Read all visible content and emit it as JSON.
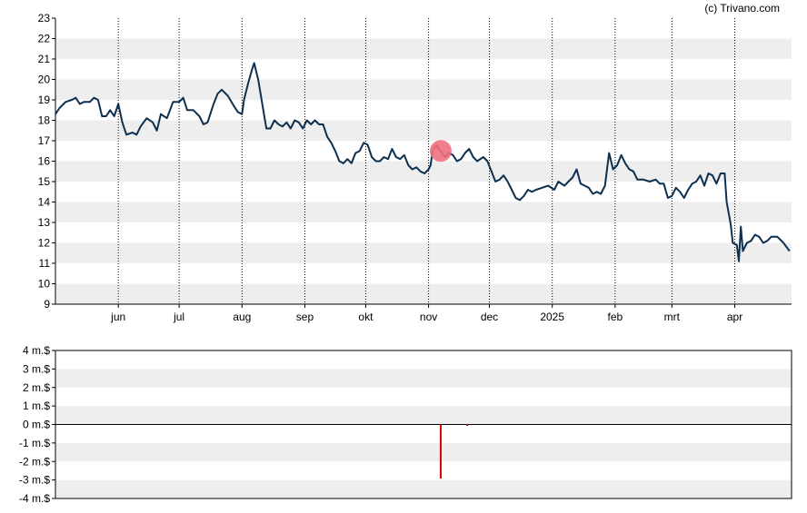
{
  "credit": "(c) Trivano.com",
  "colors": {
    "price_line": "#0d3050",
    "highlight": "#f07080",
    "flow_bar": "#dd0000",
    "band": "#eeeeee",
    "grid": "#000000"
  },
  "chart_data": [
    {
      "type": "line",
      "name": "price",
      "ylim": [
        9,
        23
      ],
      "yticks": [
        "9",
        "10",
        "11",
        "12",
        "13",
        "14",
        "15",
        "16",
        "17",
        "18",
        "19",
        "20",
        "21",
        "22",
        "23"
      ],
      "xlabels": [
        "jun",
        "jul",
        "aug",
        "sep",
        "okt",
        "nov",
        "dec",
        "2025",
        "feb",
        "mrt",
        "apr"
      ],
      "xlabel_dates": [
        "2024-06-01",
        "2024-07-01",
        "2024-08-01",
        "2024-09-01",
        "2024-10-01",
        "2024-11-01",
        "2024-12-01",
        "2025-01-01",
        "2025-02-01",
        "2025-03-01",
        "2025-04-01"
      ],
      "xlim": [
        "2024-05-01",
        "2025-04-29"
      ],
      "grid": "vertical dotted at months, horizontal bands",
      "highlight": {
        "date": "2024-11-07",
        "value": 16.5
      },
      "points": [
        [
          "2024-05-01",
          18.3
        ],
        [
          "2024-05-03",
          18.6
        ],
        [
          "2024-05-06",
          18.9
        ],
        [
          "2024-05-09",
          19.0
        ],
        [
          "2024-05-11",
          19.1
        ],
        [
          "2024-05-13",
          18.8
        ],
        [
          "2024-05-15",
          18.9
        ],
        [
          "2024-05-18",
          18.9
        ],
        [
          "2024-05-20",
          19.1
        ],
        [
          "2024-05-22",
          19.0
        ],
        [
          "2024-05-24",
          18.2
        ],
        [
          "2024-05-26",
          18.2
        ],
        [
          "2024-05-28",
          18.5
        ],
        [
          "2024-05-30",
          18.2
        ],
        [
          "2024-06-01",
          18.8
        ],
        [
          "2024-06-03",
          17.9
        ],
        [
          "2024-06-05",
          17.3
        ],
        [
          "2024-06-08",
          17.4
        ],
        [
          "2024-06-10",
          17.3
        ],
        [
          "2024-06-12",
          17.7
        ],
        [
          "2024-06-15",
          18.1
        ],
        [
          "2024-06-18",
          17.9
        ],
        [
          "2024-06-20",
          17.5
        ],
        [
          "2024-06-22",
          18.3
        ],
        [
          "2024-06-25",
          18.1
        ],
        [
          "2024-06-28",
          18.9
        ],
        [
          "2024-07-01",
          18.9
        ],
        [
          "2024-07-03",
          19.1
        ],
        [
          "2024-07-05",
          18.5
        ],
        [
          "2024-07-08",
          18.5
        ],
        [
          "2024-07-11",
          18.2
        ],
        [
          "2024-07-13",
          17.8
        ],
        [
          "2024-07-15",
          17.9
        ],
        [
          "2024-07-18",
          18.8
        ],
        [
          "2024-07-20",
          19.3
        ],
        [
          "2024-07-22",
          19.5
        ],
        [
          "2024-07-25",
          19.2
        ],
        [
          "2024-07-28",
          18.7
        ],
        [
          "2024-07-30",
          18.4
        ],
        [
          "2024-08-01",
          18.3
        ],
        [
          "2024-08-02",
          19.0
        ],
        [
          "2024-08-04",
          19.8
        ],
        [
          "2024-08-06",
          20.5
        ],
        [
          "2024-08-07",
          20.8
        ],
        [
          "2024-08-09",
          20.0
        ],
        [
          "2024-08-11",
          18.8
        ],
        [
          "2024-08-13",
          17.6
        ],
        [
          "2024-08-15",
          17.6
        ],
        [
          "2024-08-17",
          18.0
        ],
        [
          "2024-08-19",
          17.8
        ],
        [
          "2024-08-21",
          17.7
        ],
        [
          "2024-08-23",
          17.9
        ],
        [
          "2024-08-25",
          17.6
        ],
        [
          "2024-08-27",
          18.0
        ],
        [
          "2024-08-29",
          17.9
        ],
        [
          "2024-08-31",
          17.6
        ],
        [
          "2024-09-02",
          18.0
        ],
        [
          "2024-09-04",
          17.8
        ],
        [
          "2024-09-06",
          18.0
        ],
        [
          "2024-09-08",
          17.8
        ],
        [
          "2024-09-10",
          17.8
        ],
        [
          "2024-09-12",
          17.2
        ],
        [
          "2024-09-14",
          16.9
        ],
        [
          "2024-09-16",
          16.5
        ],
        [
          "2024-09-18",
          16.0
        ],
        [
          "2024-09-20",
          15.9
        ],
        [
          "2024-09-22",
          16.1
        ],
        [
          "2024-09-24",
          15.9
        ],
        [
          "2024-09-26",
          16.4
        ],
        [
          "2024-09-28",
          16.5
        ],
        [
          "2024-09-30",
          16.9
        ],
        [
          "2024-10-02",
          16.8
        ],
        [
          "2024-10-04",
          16.2
        ],
        [
          "2024-10-06",
          16.0
        ],
        [
          "2024-10-08",
          16.0
        ],
        [
          "2024-10-10",
          16.2
        ],
        [
          "2024-10-12",
          16.1
        ],
        [
          "2024-10-14",
          16.6
        ],
        [
          "2024-10-16",
          16.2
        ],
        [
          "2024-10-18",
          16.1
        ],
        [
          "2024-10-20",
          16.3
        ],
        [
          "2024-10-22",
          15.8
        ],
        [
          "2024-10-24",
          15.6
        ],
        [
          "2024-10-26",
          15.7
        ],
        [
          "2024-10-28",
          15.5
        ],
        [
          "2024-10-30",
          15.4
        ],
        [
          "2024-11-01",
          15.6
        ],
        [
          "2024-11-02",
          15.8
        ],
        [
          "2024-11-03",
          16.5
        ],
        [
          "2024-11-05",
          16.8
        ],
        [
          "2024-11-06",
          16.6
        ],
        [
          "2024-11-07",
          16.5
        ],
        [
          "2024-11-09",
          16.2
        ],
        [
          "2024-11-11",
          16.4
        ],
        [
          "2024-11-13",
          16.3
        ],
        [
          "2024-11-15",
          16.0
        ],
        [
          "2024-11-17",
          16.1
        ],
        [
          "2024-11-19",
          16.4
        ],
        [
          "2024-11-21",
          16.6
        ],
        [
          "2024-11-23",
          16.2
        ],
        [
          "2024-11-25",
          16.0
        ],
        [
          "2024-11-28",
          16.2
        ],
        [
          "2024-11-30",
          16.0
        ],
        [
          "2024-12-02",
          15.5
        ],
        [
          "2024-12-04",
          15.0
        ],
        [
          "2024-12-06",
          15.1
        ],
        [
          "2024-12-08",
          15.3
        ],
        [
          "2024-12-10",
          15.0
        ],
        [
          "2024-12-12",
          14.6
        ],
        [
          "2024-12-14",
          14.2
        ],
        [
          "2024-12-16",
          14.1
        ],
        [
          "2024-12-18",
          14.3
        ],
        [
          "2024-12-20",
          14.6
        ],
        [
          "2024-12-22",
          14.5
        ],
        [
          "2024-12-24",
          14.6
        ],
        [
          "2024-12-27",
          14.7
        ],
        [
          "2024-12-30",
          14.8
        ],
        [
          "2025-01-02",
          14.6
        ],
        [
          "2025-01-04",
          15.0
        ],
        [
          "2025-01-07",
          14.8
        ],
        [
          "2025-01-09",
          15.0
        ],
        [
          "2025-01-11",
          15.2
        ],
        [
          "2025-01-13",
          15.6
        ],
        [
          "2025-01-15",
          14.9
        ],
        [
          "2025-01-17",
          14.8
        ],
        [
          "2025-01-19",
          14.7
        ],
        [
          "2025-01-21",
          14.4
        ],
        [
          "2025-01-23",
          14.5
        ],
        [
          "2025-01-25",
          14.4
        ],
        [
          "2025-01-27",
          14.8
        ],
        [
          "2025-01-29",
          16.4
        ],
        [
          "2025-01-31",
          15.6
        ],
        [
          "2025-02-02",
          15.8
        ],
        [
          "2025-02-04",
          16.3
        ],
        [
          "2025-02-06",
          15.9
        ],
        [
          "2025-02-08",
          15.6
        ],
        [
          "2025-02-10",
          15.5
        ],
        [
          "2025-02-12",
          15.1
        ],
        [
          "2025-02-15",
          15.1
        ],
        [
          "2025-02-18",
          15.0
        ],
        [
          "2025-02-21",
          15.1
        ],
        [
          "2025-02-23",
          14.9
        ],
        [
          "2025-02-25",
          14.9
        ],
        [
          "2025-02-27",
          14.2
        ],
        [
          "2025-03-01",
          14.3
        ],
        [
          "2025-03-03",
          14.7
        ],
        [
          "2025-03-05",
          14.5
        ],
        [
          "2025-03-07",
          14.2
        ],
        [
          "2025-03-09",
          14.6
        ],
        [
          "2025-03-11",
          14.9
        ],
        [
          "2025-03-13",
          15.0
        ],
        [
          "2025-03-15",
          15.3
        ],
        [
          "2025-03-17",
          14.8
        ],
        [
          "2025-03-19",
          15.4
        ],
        [
          "2025-03-21",
          15.3
        ],
        [
          "2025-03-23",
          14.9
        ],
        [
          "2025-03-25",
          15.4
        ],
        [
          "2025-03-27",
          15.4
        ],
        [
          "2025-03-28",
          14.0
        ],
        [
          "2025-03-30",
          12.9
        ],
        [
          "2025-03-31",
          12.0
        ],
        [
          "2025-04-02",
          11.9
        ],
        [
          "2025-04-03",
          11.1
        ],
        [
          "2025-04-04",
          12.8
        ],
        [
          "2025-04-05",
          11.6
        ],
        [
          "2025-04-07",
          12.0
        ],
        [
          "2025-04-09",
          12.1
        ],
        [
          "2025-04-11",
          12.4
        ],
        [
          "2025-04-13",
          12.3
        ],
        [
          "2025-04-15",
          12.0
        ],
        [
          "2025-04-17",
          12.1
        ],
        [
          "2025-04-19",
          12.3
        ],
        [
          "2025-04-22",
          12.3
        ],
        [
          "2025-04-25",
          12.0
        ],
        [
          "2025-04-28",
          11.6
        ]
      ]
    },
    {
      "type": "bar",
      "name": "volume",
      "ylim": [
        -4,
        4
      ],
      "yticks": [
        "-4 m.$",
        "-3 m.$",
        "-2 m.$",
        "-1 m.$",
        "0 m.$",
        "1 m.$",
        "2 m.$",
        "3 m.$",
        "4 m.$"
      ],
      "bars": [
        [
          "2024-11-07",
          -2.9
        ],
        [
          "2024-11-20",
          -0.05
        ]
      ]
    }
  ]
}
